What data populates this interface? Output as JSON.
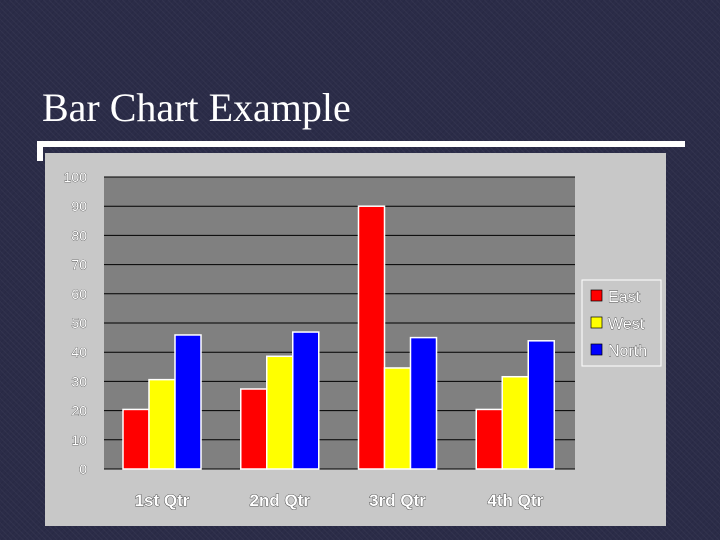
{
  "slide": {
    "title": "Bar Chart Example"
  },
  "chart_data": {
    "type": "bar",
    "categories": [
      "1st Qtr",
      "2nd Qtr",
      "3rd Qtr",
      "4th Qtr"
    ],
    "series": [
      {
        "name": "East",
        "color": "#ff0000",
        "values": [
          20.4,
          27.4,
          90,
          20.4
        ]
      },
      {
        "name": "West",
        "color": "#ffff00",
        "values": [
          30.6,
          38.6,
          34.6,
          31.6
        ]
      },
      {
        "name": "North",
        "color": "#0000ff",
        "values": [
          45.9,
          46.9,
          45,
          43.9
        ]
      }
    ],
    "ylim": [
      0,
      100
    ],
    "yticks": [
      "0",
      "10",
      "20",
      "30",
      "40",
      "50",
      "60",
      "70",
      "80",
      "90",
      "100"
    ],
    "grid": true,
    "legend": "right",
    "plot_background": "#808080"
  }
}
